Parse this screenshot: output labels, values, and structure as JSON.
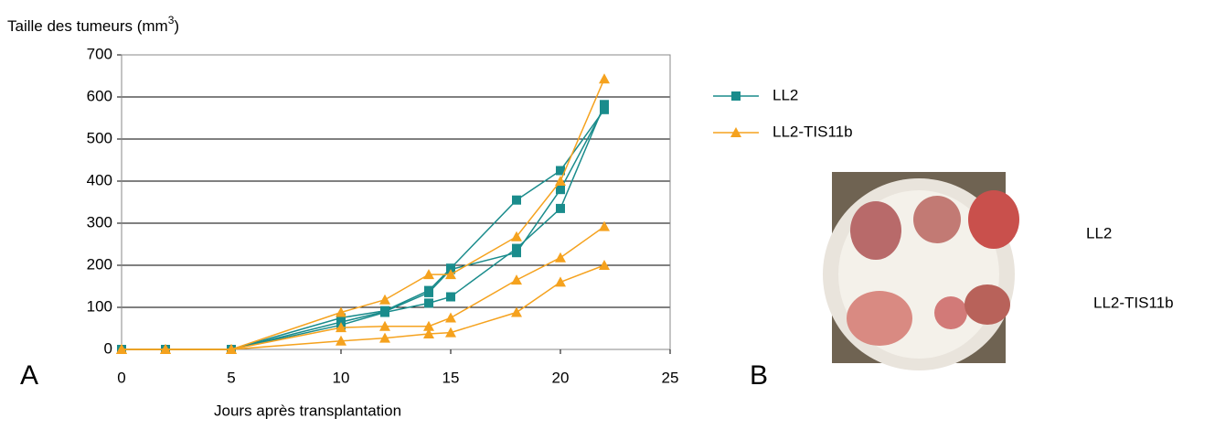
{
  "chart_data": {
    "type": "line",
    "y_label": "Taille des tumeurs (mm",
    "y_label_sup": "3",
    "y_label_end": ")",
    "x_label": "Jours après transplantation",
    "x": [
      0,
      2,
      5,
      10,
      12,
      14,
      15,
      18,
      20,
      22
    ],
    "xlim": [
      0,
      25
    ],
    "xticks": [
      0,
      5,
      10,
      15,
      20,
      25
    ],
    "ylim": [
      0,
      700
    ],
    "yticks": [
      0,
      100,
      200,
      300,
      400,
      500,
      600,
      700
    ],
    "grid": true,
    "legend": "right",
    "series": [
      {
        "name": "LL2",
        "color": "#1a8c8c",
        "marker": "square",
        "lines": [
          {
            "values": [
              0,
              0,
              0,
              75,
              92,
              140,
              193,
              355,
              425,
              570
            ]
          },
          {
            "values": [
              0,
              0,
              0,
              65,
              90,
              135,
              190,
              230,
              380,
              575
            ]
          },
          {
            "values": [
              0,
              0,
              0,
              58,
              88,
              110,
              125,
              240,
              335,
              582
            ]
          }
        ]
      },
      {
        "name": "LL2-TIS11b",
        "color": "#f5a21e",
        "marker": "triangle",
        "lines": [
          {
            "values": [
              0,
              0,
              0,
              88,
              118,
              178,
              178,
              268,
              400,
              643
            ]
          },
          {
            "values": [
              0,
              0,
              0,
              52,
              55,
              55,
              75,
              165,
              218,
              292
            ]
          },
          {
            "values": [
              0,
              0,
              0,
              20,
              27,
              37,
              40,
              88,
              160,
              200
            ]
          }
        ]
      }
    ]
  },
  "panel_a": "A",
  "panel_b": "B",
  "photo_labels": [
    "LL2",
    "LL2-TIS11b"
  ]
}
